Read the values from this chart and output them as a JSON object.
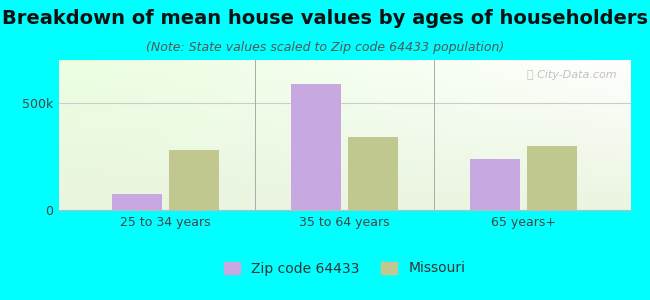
{
  "title": "Breakdown of mean house values by ages of householders",
  "subtitle": "(Note: State values scaled to Zip code 64433 population)",
  "categories": [
    "25 to 34 years",
    "35 to 64 years",
    "65 years+"
  ],
  "zip_values": [
    75000,
    590000,
    240000
  ],
  "state_values": [
    280000,
    340000,
    300000
  ],
  "zip_color": "#c8a8e0",
  "state_color": "#c0c890",
  "zip_label": "Zip code 64433",
  "state_label": "Missouri",
  "ylim": [
    0,
    700000
  ],
  "yticks": [
    0,
    500000
  ],
  "ytick_labels": [
    "0",
    "500k"
  ],
  "bg_color": "#00ffff",
  "bar_width": 0.28,
  "title_fontsize": 14,
  "subtitle_fontsize": 9,
  "tick_fontsize": 9,
  "legend_fontsize": 10
}
